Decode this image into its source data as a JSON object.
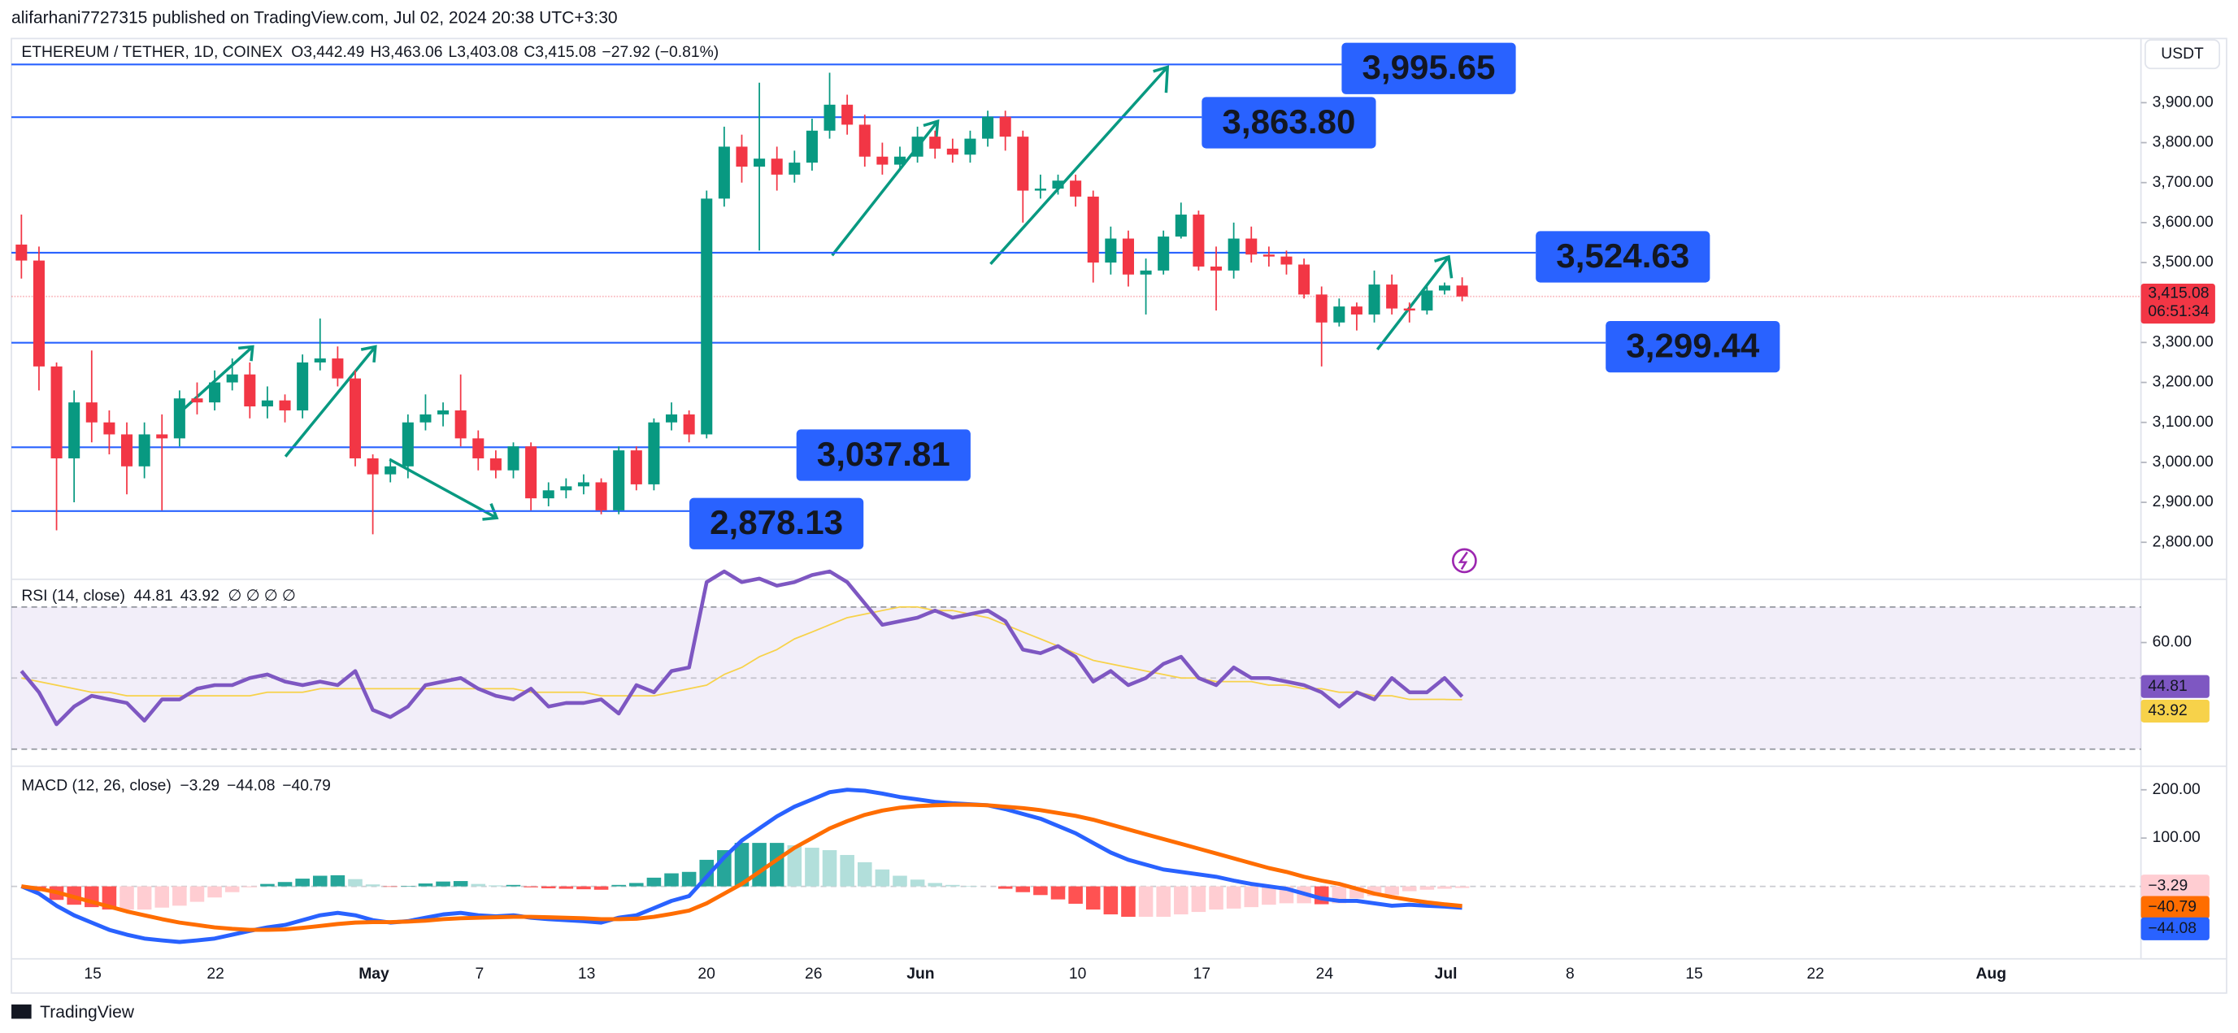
{
  "header": {
    "author_line": "alifarhani7727315 published on TradingView.com, Jul 02, 2024 20:38 UTC+3:30",
    "symbol": "ETHEREUM / TETHER, 1D, COINEX",
    "ohlc": [
      {
        "key": "O",
        "value": "3,442.49"
      },
      {
        "key": "H",
        "value": "3,463.06"
      },
      {
        "key": "L",
        "value": "3,403.08"
      },
      {
        "key": "C",
        "value": "3,415.08"
      }
    ],
    "change": "−27.92 (−0.81%)",
    "unit": "USDT",
    "countdown": "06:51:34",
    "footer": "TradingView"
  },
  "chart_data": [
    {
      "type": "candlestick",
      "up_color": "#089981",
      "down_color": "#f23645",
      "last_label": "3,415.08",
      "open": [
        3545,
        3505,
        3240,
        3010,
        3150,
        3100,
        3070,
        2990,
        3070,
        3060,
        3160,
        3150,
        3200,
        3220,
        3140,
        3155,
        3130,
        3250,
        3260,
        3210,
        3010,
        2970,
        2990,
        3100,
        3120,
        3130,
        3060,
        3010,
        2980,
        3040,
        2910,
        2930,
        2940,
        2950,
        2880,
        3030,
        2945,
        3100,
        3120,
        3070,
        3660,
        3790,
        3740,
        3760,
        3720,
        3750,
        3830,
        3895,
        3845,
        3765,
        3745,
        3765,
        3815,
        3785,
        3770,
        3810,
        3865,
        3815,
        3680,
        3685,
        3705,
        3665,
        3500,
        3560,
        3470,
        3480,
        3565,
        3620,
        3490,
        3480,
        3560,
        3520,
        3515,
        3495,
        3420,
        3350,
        3390,
        3370,
        3445,
        3385,
        3380,
        3430,
        3442.49
      ],
      "high": [
        3620,
        3540,
        3250,
        3180,
        3280,
        3130,
        3100,
        3100,
        3120,
        3180,
        3200,
        3230,
        3260,
        3250,
        3190,
        3170,
        3270,
        3360,
        3290,
        3230,
        3020,
        3010,
        3120,
        3170,
        3150,
        3220,
        3080,
        3030,
        3050,
        3050,
        2950,
        2960,
        2970,
        2960,
        3040,
        3040,
        3110,
        3150,
        3130,
        3680,
        3840,
        3820,
        3950,
        3790,
        3780,
        3860,
        3975,
        3920,
        3870,
        3800,
        3790,
        3840,
        3830,
        3810,
        3830,
        3880,
        3880,
        3830,
        3720,
        3720,
        3720,
        3680,
        3590,
        3580,
        3510,
        3580,
        3650,
        3630,
        3540,
        3600,
        3590,
        3540,
        3530,
        3510,
        3440,
        3410,
        3400,
        3480,
        3470,
        3400,
        3440,
        3450,
        3463.06
      ],
      "low": [
        3460,
        3180,
        2830,
        2900,
        3050,
        3020,
        2920,
        2960,
        2880,
        3040,
        3120,
        3130,
        3180,
        3110,
        3110,
        3100,
        3110,
        3230,
        3190,
        2990,
        2820,
        2950,
        2960,
        3080,
        3090,
        3040,
        2980,
        2960,
        2960,
        2880,
        2890,
        2910,
        2920,
        2870,
        2870,
        2930,
        2930,
        3080,
        3050,
        3060,
        3640,
        3700,
        3530,
        3680,
        3700,
        3730,
        3810,
        3820,
        3740,
        3720,
        3730,
        3750,
        3760,
        3750,
        3750,
        3790,
        3780,
        3600,
        3660,
        3670,
        3640,
        3450,
        3470,
        3440,
        3370,
        3470,
        3560,
        3480,
        3380,
        3460,
        3500,
        3490,
        3470,
        3410,
        3240,
        3340,
        3330,
        3350,
        3370,
        3350,
        3370,
        3420,
        3403.08
      ],
      "close": [
        3505,
        3240,
        3010,
        3150,
        3100,
        3070,
        2990,
        3070,
        3060,
        3160,
        3150,
        3200,
        3220,
        3140,
        3155,
        3130,
        3250,
        3260,
        3210,
        3010,
        2970,
        2990,
        3100,
        3120,
        3130,
        3060,
        3010,
        2980,
        3040,
        2910,
        2930,
        2940,
        2950,
        2880,
        3030,
        2945,
        3100,
        3120,
        3070,
        3660,
        3790,
        3740,
        3760,
        3720,
        3750,
        3830,
        3895,
        3845,
        3765,
        3745,
        3765,
        3815,
        3785,
        3770,
        3810,
        3865,
        3815,
        3680,
        3685,
        3705,
        3665,
        3500,
        3560,
        3470,
        3480,
        3565,
        3620,
        3490,
        3480,
        3560,
        3520,
        3515,
        3495,
        3420,
        3350,
        3390,
        3370,
        3445,
        3385,
        3380,
        3430,
        3442.49,
        3415.08
      ],
      "ylim": [
        2711,
        4057
      ],
      "yticks": [
        {
          "value": 2800,
          "label": "2,800.00"
        },
        {
          "value": 2900,
          "label": "2,900.00"
        },
        {
          "value": 3000,
          "label": "3,000.00"
        },
        {
          "value": 3100,
          "label": "3,100.00"
        },
        {
          "value": 3200,
          "label": "3,200.00"
        },
        {
          "value": 3300,
          "label": "3,300.00"
        },
        {
          "value": 3400,
          "label": "3,400.00"
        },
        {
          "value": 3500,
          "label": "3,500.00"
        },
        {
          "value": 3600,
          "label": "3,600.00"
        },
        {
          "value": 3700,
          "label": "3,700.00"
        },
        {
          "value": 3800,
          "label": "3,800.00"
        },
        {
          "value": 3900,
          "label": "3,900.00"
        }
      ],
      "levels": [
        {
          "value": 3995.65,
          "label": "3,995.65"
        },
        {
          "value": 3863.8,
          "label": "3,863.80"
        },
        {
          "value": 3524.63,
          "label": "3,524.63"
        },
        {
          "value": 3299.44,
          "label": "3,299.44"
        },
        {
          "value": 3037.81,
          "label": "3,037.81"
        },
        {
          "value": 2878.13,
          "label": "2,878.13"
        }
      ],
      "level_color": "#2962ff",
      "xtick_labels": [
        "15",
        "22",
        "May",
        "7",
        "13",
        "20",
        "26",
        "Jun",
        "10",
        "17",
        "24",
        "Jul",
        "8",
        "15",
        "22",
        "Aug"
      ]
    },
    {
      "type": "line",
      "title": "RSI (14, close)",
      "extra": "∅ ∅ ∅ ∅",
      "ylim": [
        26,
        77
      ],
      "band": [
        30,
        70
      ],
      "midline": 50,
      "band_color": "#7e57c2",
      "yticks": [
        {
          "value": 60,
          "label": "60.00"
        }
      ],
      "series": [
        {
          "color": "#7e57c2",
          "last_label": "44.81",
          "values": [
            52,
            46,
            37,
            42,
            45,
            44,
            43,
            38,
            44,
            44,
            47,
            48,
            48,
            50,
            51,
            49,
            48,
            49,
            48,
            52,
            41,
            39,
            42,
            48,
            49,
            50,
            47,
            45,
            44,
            47,
            42,
            43,
            43,
            44,
            40,
            48,
            46,
            52,
            53,
            77,
            80,
            77,
            78,
            76,
            77,
            79,
            80,
            77,
            71,
            65,
            66,
            67,
            69,
            67,
            68,
            69,
            66,
            58,
            57,
            59,
            56,
            49,
            52,
            48,
            50,
            54,
            56,
            50,
            48,
            53,
            50,
            50,
            49,
            48,
            46,
            42,
            46,
            44,
            50,
            46,
            46,
            50,
            44.81
          ]
        },
        {
          "color": "#f7d24a",
          "last_label": "43.92",
          "values": [
            50,
            49,
            48,
            47,
            46,
            46,
            45,
            45,
            45,
            45,
            45,
            45,
            45,
            45,
            46,
            46,
            46,
            47,
            47,
            47,
            47,
            47,
            47,
            47,
            47,
            47,
            47,
            47,
            47,
            46,
            46,
            46,
            46,
            45,
            45,
            45,
            45,
            46,
            47,
            48,
            51,
            53,
            56,
            58,
            61,
            63,
            65,
            67,
            68,
            69,
            70,
            70,
            69,
            69,
            68,
            67,
            65,
            63,
            61,
            59,
            57,
            55,
            54,
            53,
            52,
            51,
            50,
            50,
            49,
            49,
            49,
            48,
            48,
            47,
            47,
            46,
            46,
            45,
            45,
            44,
            44,
            44,
            43.92
          ]
        }
      ]
    },
    {
      "type": "macd",
      "title": "MACD (12, 26, close)",
      "ylim": [
        -150,
        240
      ],
      "yticks": [
        {
          "value": 100,
          "label": "100.00"
        },
        {
          "value": 200,
          "label": "200.00"
        }
      ],
      "histogram": {
        "last_label": "−3.29",
        "colors": {
          "up_grow": "#26a69a",
          "up_fall": "#b2dfdb",
          "down_fall": "#ff5252",
          "down_rise": "#ffcdd2"
        },
        "values": [
          0,
          -10,
          -28,
          -38,
          -43,
          -48,
          -48,
          -48,
          -44,
          -40,
          -32,
          -23,
          -12,
          -2,
          5,
          9,
          16,
          22,
          23,
          15,
          4,
          -1,
          1,
          6,
          10,
          11,
          5,
          2,
          3,
          -2,
          -4,
          -5,
          -6,
          -7,
          3,
          7,
          18,
          27,
          30,
          55,
          75,
          90,
          90,
          90,
          85,
          80,
          75,
          65,
          50,
          35,
          22,
          14,
          7,
          3,
          1,
          0,
          -5,
          -12,
          -18,
          -27,
          -36,
          -48,
          -58,
          -63,
          -63,
          -63,
          -58,
          -53,
          -48,
          -46,
          -43,
          -38,
          -35,
          -35,
          -37,
          -35,
          -25,
          -20,
          -18,
          -10,
          -7,
          -5,
          -3.29
        ]
      },
      "series": [
        {
          "color": "#2962ff",
          "last_label": "−44.08",
          "values": [
            0,
            -15,
            -40,
            -60,
            -75,
            -90,
            -100,
            -108,
            -112,
            -115,
            -112,
            -108,
            -100,
            -92,
            -85,
            -80,
            -70,
            -60,
            -55,
            -60,
            -70,
            -75,
            -72,
            -65,
            -58,
            -55,
            -60,
            -62,
            -60,
            -65,
            -68,
            -70,
            -72,
            -75,
            -65,
            -60,
            -45,
            -30,
            -20,
            20,
            60,
            95,
            120,
            145,
            165,
            180,
            195,
            200,
            198,
            192,
            185,
            180,
            175,
            172,
            170,
            168,
            160,
            150,
            140,
            125,
            110,
            90,
            70,
            55,
            45,
            35,
            30,
            25,
            20,
            12,
            5,
            0,
            -5,
            -15,
            -25,
            -30,
            -30,
            -35,
            -40,
            -38,
            -40,
            -42,
            -44.08
          ]
        },
        {
          "color": "#ff6d00",
          "last_label": "−40.79",
          "values": [
            0,
            -5,
            -12,
            -22,
            -32,
            -42,
            -52,
            -60,
            -68,
            -75,
            -80,
            -85,
            -88,
            -90,
            -90,
            -89,
            -86,
            -82,
            -78,
            -75,
            -74,
            -74,
            -73,
            -71,
            -68,
            -66,
            -65,
            -64,
            -63,
            -63,
            -64,
            -65,
            -66,
            -68,
            -68,
            -67,
            -63,
            -57,
            -50,
            -35,
            -15,
            5,
            30,
            55,
            80,
            100,
            120,
            135,
            148,
            157,
            163,
            166,
            168,
            169,
            169,
            168,
            165,
            162,
            158,
            152,
            146,
            138,
            128,
            118,
            108,
            98,
            88,
            78,
            68,
            58,
            48,
            38,
            30,
            20,
            12,
            5,
            -5,
            -15,
            -22,
            -28,
            -33,
            -37,
            -40.79
          ]
        }
      ]
    }
  ]
}
